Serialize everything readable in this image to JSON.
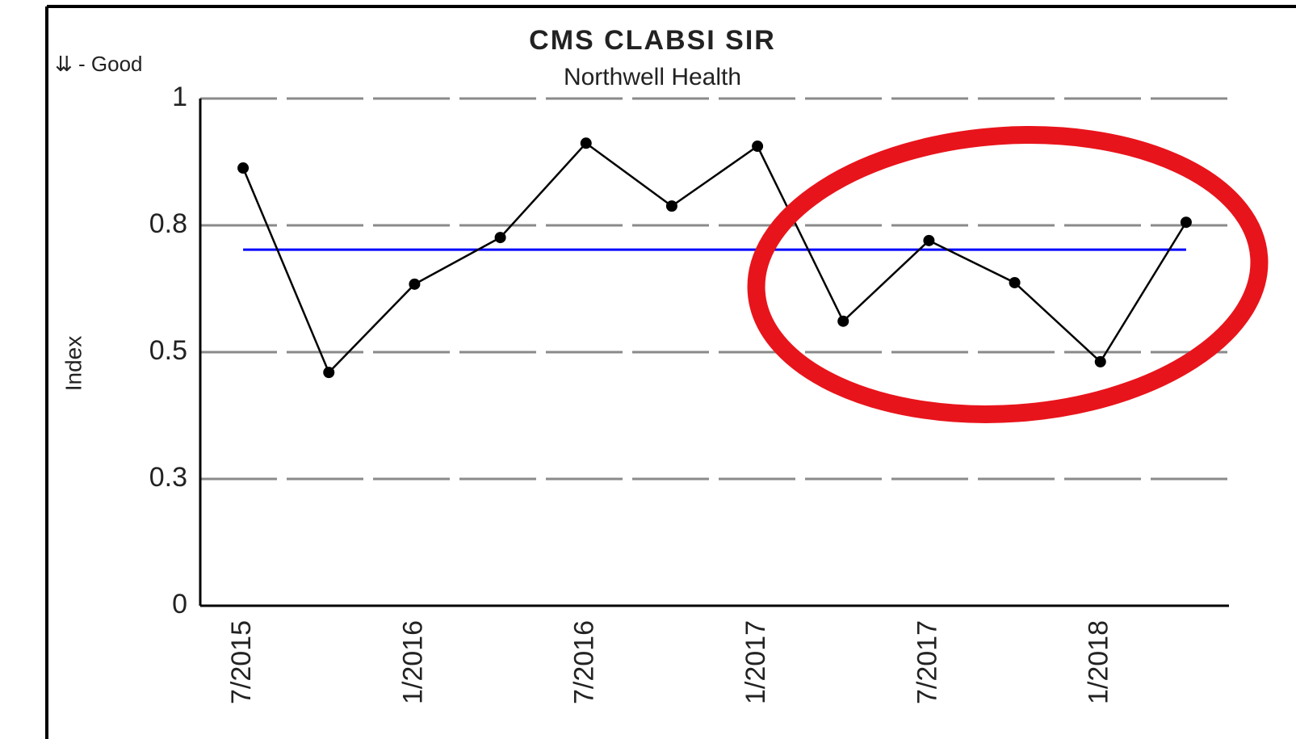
{
  "chart_data": {
    "type": "line",
    "title": "CMS CLABSI SIR",
    "subtitle": "Northwell Health",
    "y_label": "Index",
    "annotation": "⇊ - Good",
    "categories": [
      "7/2015",
      null,
      "1/2016",
      null,
      "7/2016",
      null,
      "1/2017",
      null,
      "7/2017",
      null,
      "1/2018",
      null
    ],
    "values": [
      0.863,
      0.46,
      0.634,
      0.726,
      0.912,
      0.788,
      0.906,
      0.561,
      0.72,
      0.637,
      0.481,
      0.756
    ],
    "color": "#000000",
    "mean_line": {
      "value": 0.702,
      "color": "#0000ff"
    },
    "ylim": [
      0,
      1
    ],
    "yticks": [
      0,
      {
        "value": 0.25,
        "label": "0.3"
      },
      0.5,
      {
        "value": 0.75,
        "label": "0.8"
      },
      1
    ],
    "grid": true
  }
}
